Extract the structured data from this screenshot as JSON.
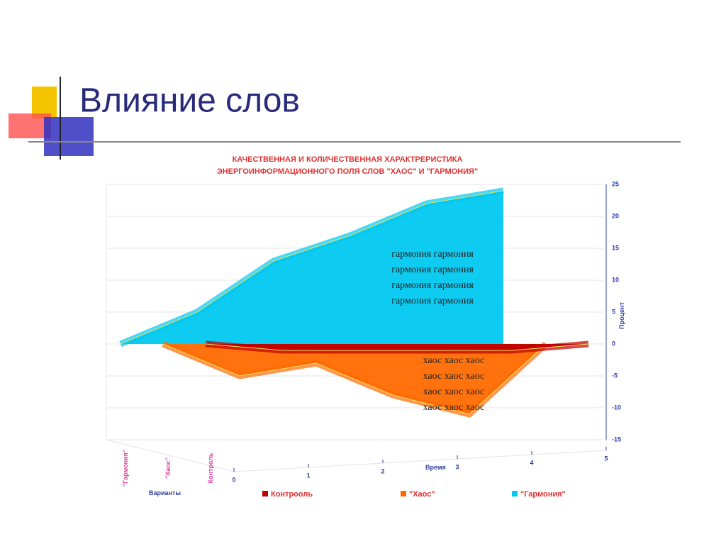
{
  "slide_title": "Влияние слов",
  "chart_data": {
    "type": "area3d",
    "title": "КАЧЕСТВЕННАЯ И КОЛИЧЕСТВЕННАЯ ХАРАКТРЕРИСТИКА",
    "subtitle": "ЭНЕРГОИНФОРМАЦИОННОГО ПОЛЯ СЛОВ \"ХАОС\" И \"ГАРМОНИЯ\"",
    "ylabel": "Процент",
    "xlabel": "Время",
    "zlabel": "Варианты",
    "zcategories": [
      "\"Гармония\"",
      "\"Хаос\"",
      "Контроль"
    ],
    "x": [
      0,
      1,
      2,
      3,
      4,
      5
    ],
    "xlim": [
      0,
      5
    ],
    "xticks": [
      0,
      1,
      2,
      3,
      4,
      5
    ],
    "ylim": [
      -15,
      25
    ],
    "yticks": [
      -15,
      -10,
      -5,
      0,
      5,
      10,
      15,
      20,
      25
    ],
    "grid": true,
    "series": [
      {
        "name": "\"Гармония\"",
        "color": "#00c8f0",
        "values": [
          0,
          5,
          13,
          17,
          22,
          24
        ]
      },
      {
        "name": "\"Хаос\"",
        "color": "#ff6a00",
        "values": [
          0,
          -5,
          -3,
          -8,
          -11,
          0
        ]
      },
      {
        "name": "Контрооль",
        "color": "#c00000",
        "values": [
          0,
          -1,
          -1,
          -1,
          -1,
          0
        ]
      }
    ],
    "annotations": [
      {
        "lines": [
          "гармония гармония",
          "гармония гармония",
          "гармония гармония",
          "гармония гармония"
        ]
      },
      {
        "lines": [
          "хаос хаос хаос",
          "хаос хаос хаос",
          "хаос хаос хаос",
          "хаос хаос хаос"
        ]
      }
    ]
  }
}
